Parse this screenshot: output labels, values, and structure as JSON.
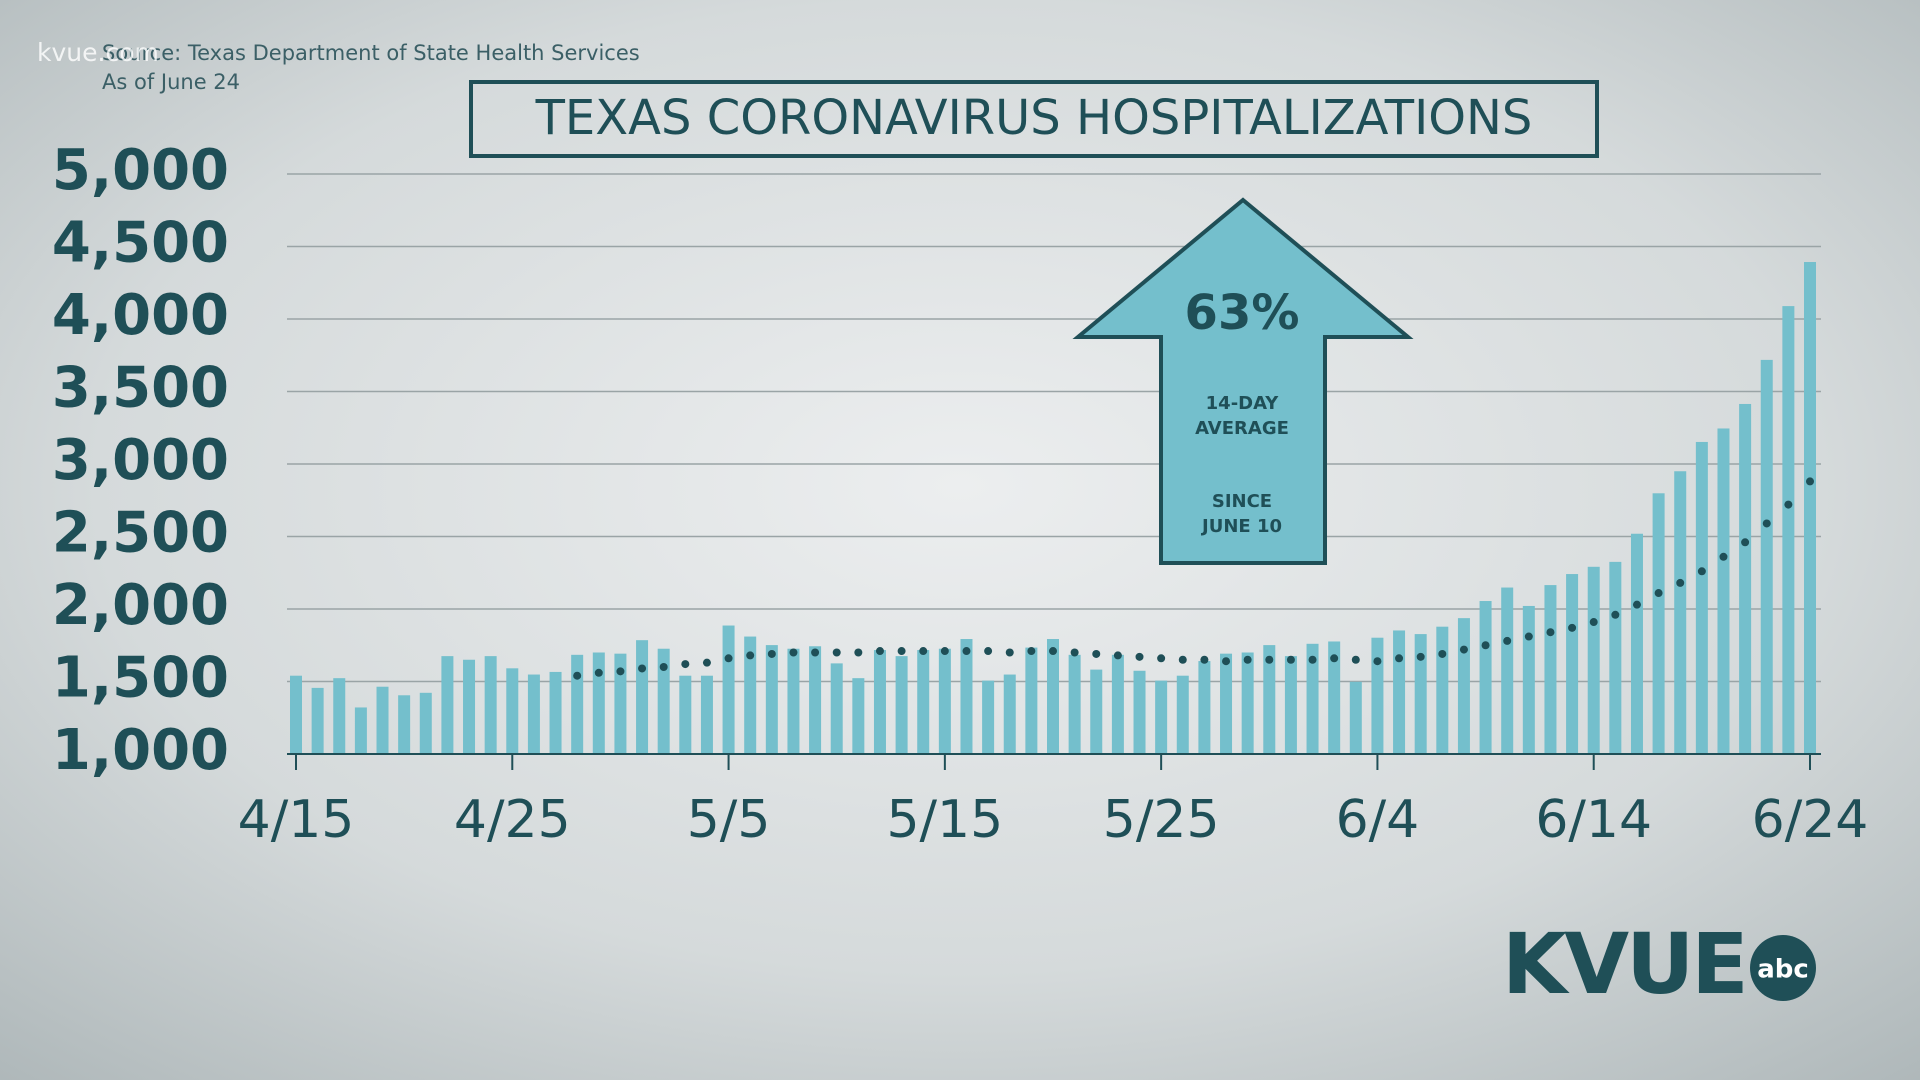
{
  "chart_data": {
    "type": "bar",
    "title": "TEXAS CORONAVIRUS HOSPITALIZATIONS",
    "source": "Source: Texas Department of State Health Services",
    "subtitle": "As of June 24",
    "watermark": "kvue.com",
    "logo": "KVUE",
    "logo_badge": "abc",
    "annotation": {
      "headline": "63%",
      "lines": [
        "14-DAY",
        "AVERAGE",
        "SINCE",
        "JUNE 10"
      ]
    },
    "categories": [
      "4/15",
      null,
      null,
      null,
      null,
      null,
      null,
      null,
      null,
      null,
      "4/25",
      null,
      null,
      null,
      null,
      null,
      null,
      null,
      null,
      null,
      "5/5",
      null,
      null,
      null,
      null,
      null,
      null,
      null,
      null,
      null,
      "5/15",
      null,
      null,
      null,
      null,
      null,
      null,
      null,
      null,
      null,
      "5/25",
      null,
      null,
      null,
      null,
      null,
      null,
      null,
      null,
      null,
      "6/4",
      null,
      null,
      null,
      null,
      null,
      null,
      null,
      null,
      null,
      "6/14",
      null,
      null,
      null,
      null,
      null,
      null,
      null,
      null,
      null,
      "6/24"
    ],
    "series": [
      {
        "name": "Hospitalizations",
        "type": "bar",
        "color": "#74bfcc",
        "values": [
          1540,
          1456,
          1523,
          1321,
          1464,
          1405,
          1422,
          1675,
          1650,
          1675,
          1591,
          1548,
          1566,
          1684,
          1700,
          1692,
          1785,
          1726,
          1540,
          1540,
          1886,
          1810,
          1751,
          1726,
          1743,
          1625,
          1523,
          1717,
          1675,
          1717,
          1726,
          1793,
          1506,
          1548,
          1734,
          1793,
          1684,
          1582,
          1684,
          1574,
          1506,
          1540,
          1641,
          1692,
          1700,
          1751,
          1675,
          1760,
          1776,
          1498,
          1802,
          1852,
          1827,
          1878,
          1937,
          2055,
          2148,
          2021,
          2165,
          2241,
          2291,
          2325,
          2519,
          2798,
          2950,
          3152,
          3245,
          3414,
          3718,
          4089,
          4393
        ]
      },
      {
        "name": "14-day average",
        "type": "dotted-line",
        "color": "#1f4f57",
        "values": [
          null,
          null,
          null,
          null,
          null,
          null,
          null,
          null,
          null,
          null,
          null,
          null,
          null,
          1540,
          1560,
          1570,
          1590,
          1600,
          1620,
          1630,
          1660,
          1680,
          1690,
          1700,
          1700,
          1700,
          1700,
          1710,
          1710,
          1710,
          1710,
          1710,
          1710,
          1700,
          1710,
          1710,
          1700,
          1690,
          1680,
          1670,
          1660,
          1650,
          1650,
          1640,
          1650,
          1650,
          1650,
          1650,
          1660,
          1650,
          1640,
          1660,
          1670,
          1690,
          1720,
          1750,
          1780,
          1810,
          1840,
          1870,
          1910,
          1960,
          2030,
          2110,
          2180,
          2260,
          2360,
          2460,
          2590,
          2720,
          2880
        ]
      }
    ],
    "ylim": [
      1000,
      5000
    ],
    "yticks": [
      {
        "value": 1000,
        "label": "1,000"
      },
      {
        "value": 1500,
        "label": "1,500"
      },
      {
        "value": 2000,
        "label": "2,000"
      },
      {
        "value": 2500,
        "label": "2,500"
      },
      {
        "value": 3000,
        "label": "3,000"
      },
      {
        "value": 3500,
        "label": "3,500"
      },
      {
        "value": 4000,
        "label": "4,000"
      },
      {
        "value": 4500,
        "label": "4,500"
      },
      {
        "value": 5000,
        "label": "5,000"
      }
    ],
    "grid": true
  }
}
